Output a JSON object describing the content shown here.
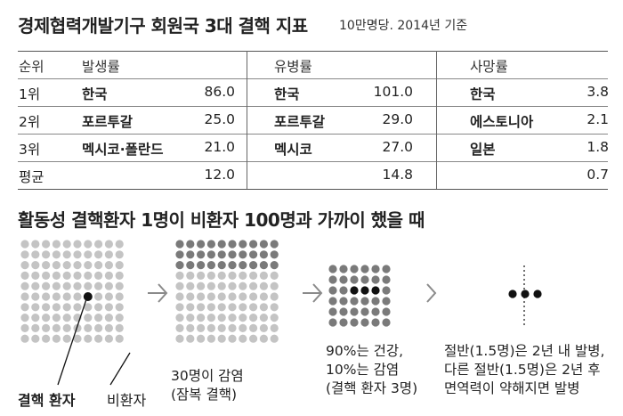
{
  "header": {
    "title": "경제협력개발기구 회원국 3대 결핵 지표",
    "subtitle": "10만명당. 2014년 기준"
  },
  "table": {
    "rank_header": "순위",
    "columns": [
      "발생률",
      "유병률",
      "사망률"
    ],
    "rows": [
      {
        "rank": "1위",
        "incidence_country": "한국",
        "incidence_value": "86.0",
        "prevalence_country": "한국",
        "prevalence_value": "101.0",
        "mortality_country": "한국",
        "mortality_value": "3.8"
      },
      {
        "rank": "2위",
        "incidence_country": "포르투갈",
        "incidence_value": "25.0",
        "prevalence_country": "포르투갈",
        "prevalence_value": "29.0",
        "mortality_country": "에스토니아",
        "mortality_value": "2.1"
      },
      {
        "rank": "3위",
        "incidence_country": "멕시코·폴란드",
        "incidence_value": "21.0",
        "prevalence_country": "멕시코",
        "prevalence_value": "27.0",
        "mortality_country": "일본",
        "mortality_value": "1.8"
      }
    ],
    "average": {
      "label": "평균",
      "incidence_value": "12.0",
      "prevalence_value": "14.8",
      "mortality_value": "0.7"
    }
  },
  "section2": {
    "title": "활동성 결핵환자 1명이 비환자 100명과 가까이 했을 때"
  },
  "diagram": {
    "label_patient": "결핵 환자",
    "label_non_patient": "비환자",
    "step1_caption": [
      "30명이 감염",
      "(잠복 결핵)"
    ],
    "step2_caption": [
      "90%는 건강,",
      "10%는 감염",
      "(결핵 환자 3명)"
    ],
    "step3_caption": [
      "절반(1.5명)은 2년 내 발병,",
      "다른 절반(1.5명)은 2년 후",
      "면역력이 약해지면 발병"
    ],
    "colors": {
      "light_dot": "#c4c4c4",
      "gray_dot": "#7a7a7a",
      "dark_dot": "#111111",
      "arrow": "#8a8a8a"
    }
  }
}
